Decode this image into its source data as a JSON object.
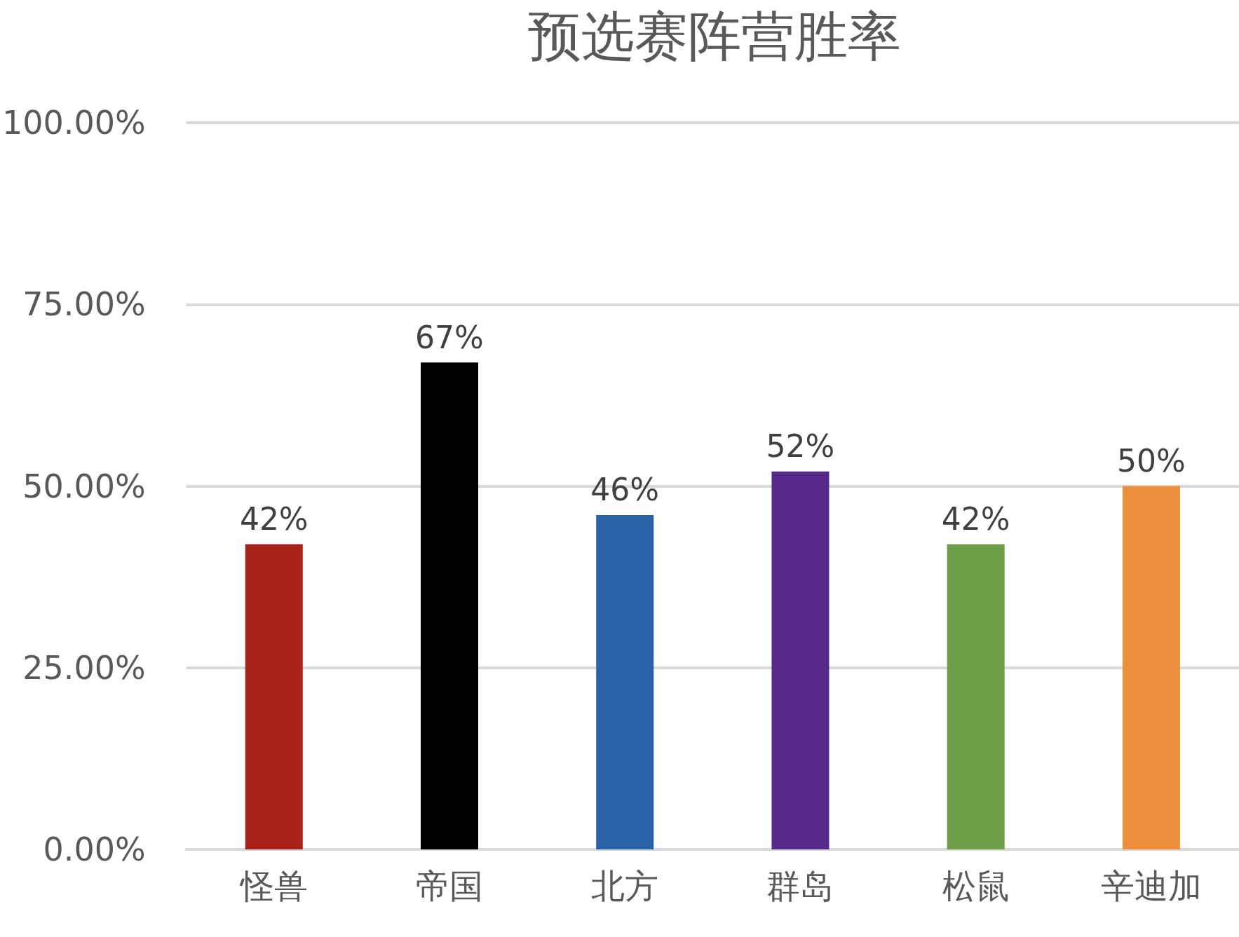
{
  "chart_data": {
    "type": "bar",
    "title": "预选赛阵营胜率",
    "categories": [
      "怪兽",
      "帝国",
      "北方",
      "群岛",
      "松鼠",
      "辛迪加"
    ],
    "values": [
      42,
      67,
      46,
      52,
      42,
      50
    ],
    "colors": [
      "#a82219",
      "#000000",
      "#2a62a8",
      "#57298a",
      "#6f9e48",
      "#ee8f3d"
    ],
    "value_labels": [
      "42%",
      "67%",
      "46%",
      "52%",
      "42%",
      "50%"
    ],
    "ylim": [
      0,
      100
    ],
    "yticks": [
      {
        "value": 0,
        "label": "0.00%"
      },
      {
        "value": 25,
        "label": "25.00%"
      },
      {
        "value": 50,
        "label": "50.00%"
      },
      {
        "value": 75,
        "label": "75.00%"
      },
      {
        "value": 100,
        "label": "100.00%"
      }
    ],
    "grid": "y"
  }
}
